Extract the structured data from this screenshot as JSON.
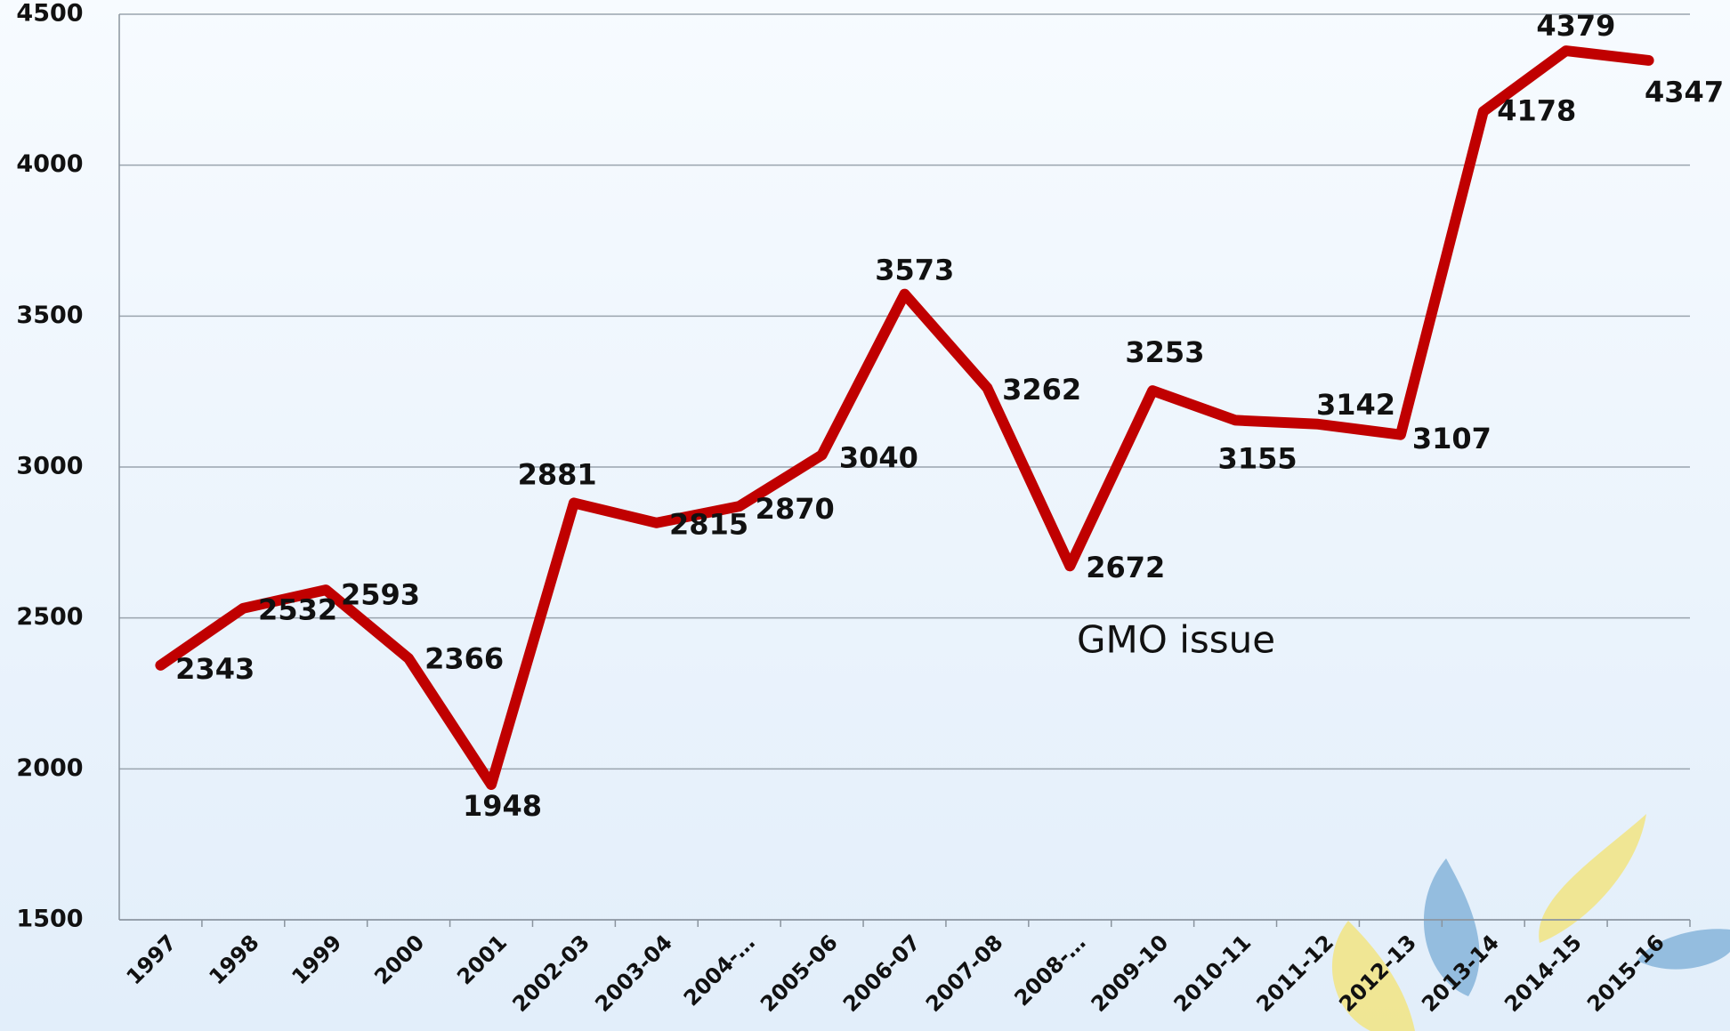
{
  "chart_data": {
    "type": "line",
    "categories": [
      "1997",
      "1998",
      "1999",
      "2000",
      "2001",
      "2002-03",
      "2003-04",
      "2004-…",
      "2005-06",
      "2006-07",
      "2007-08",
      "2008-…",
      "2009-10",
      "2010-11",
      "2011-12",
      "2012-13",
      "2013-14",
      "2014-15",
      "2015-16"
    ],
    "values": [
      2343,
      2532,
      2593,
      2366,
      1948,
      2881,
      2815,
      2870,
      3040,
      3573,
      3262,
      2672,
      3253,
      3155,
      3142,
      3107,
      4178,
      4379,
      4347
    ],
    "color": "#c00000",
    "ylim": [
      1500,
      4500
    ],
    "yticks": [
      1500,
      2000,
      2500,
      3000,
      3500,
      4000,
      4500
    ],
    "grid": true,
    "annotations": [
      "GMO  issue"
    ]
  }
}
